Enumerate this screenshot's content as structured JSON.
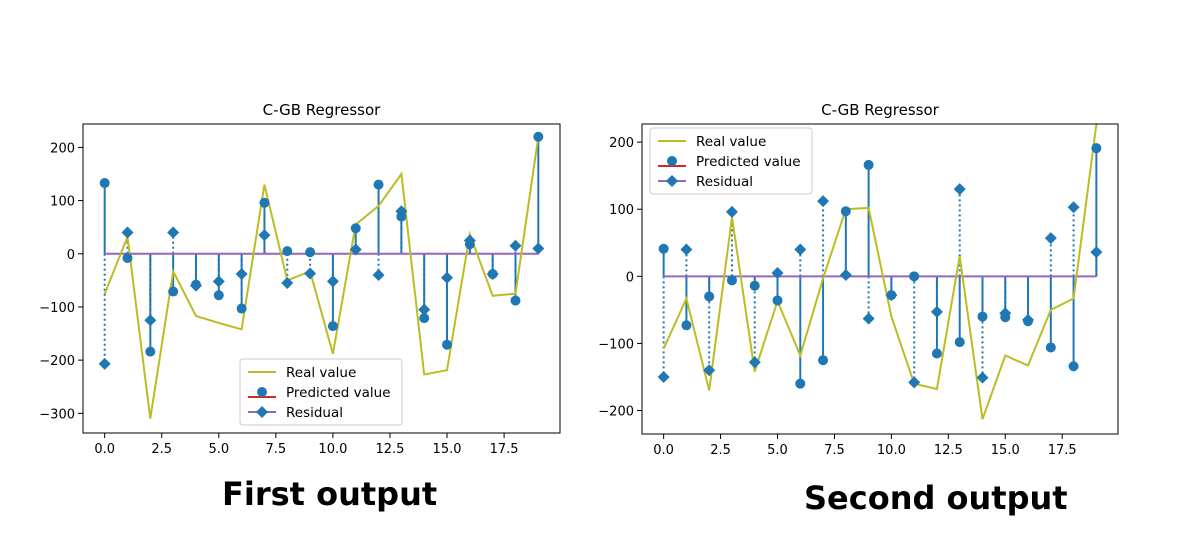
{
  "captions": [
    "First output",
    "Second output"
  ],
  "legend_labels": {
    "real": "Real value",
    "pred": "Predicted value",
    "resid": "Residual"
  },
  "colors": {
    "real": "#bcbd22",
    "pred": "#1f77b4",
    "pred_legend_line": "#d62728",
    "resid": "#9467bd",
    "stem": "#1f77b4"
  },
  "chart_data": [
    {
      "type": "line",
      "title": "C-GB Regressor",
      "xlabel": "",
      "ylabel": "",
      "xlim": [
        -0.95,
        19.95
      ],
      "ylim": [
        -337,
        244
      ],
      "xticks": [
        0,
        2.5,
        5,
        7.5,
        10,
        12.5,
        15,
        17.5
      ],
      "xtick_labels": [
        "0.0",
        "2.5",
        "5.0",
        "7.5",
        "10.0",
        "12.5",
        "15.0",
        "17.5"
      ],
      "yticks": [
        200,
        100,
        0,
        -100,
        -200,
        -300
      ],
      "ytick_labels": [
        "200",
        "100",
        "0",
        "−100",
        "−200",
        "−300"
      ],
      "legend": "lower-center",
      "grid": false,
      "x": [
        0,
        1,
        2,
        3,
        4,
        5,
        6,
        7,
        8,
        9,
        10,
        11,
        12,
        13,
        14,
        15,
        16,
        17,
        18,
        19
      ],
      "series": [
        {
          "name": "Real value",
          "values": [
            -75,
            32,
            -310,
            -33,
            -117,
            -130,
            -142,
            130,
            -50,
            -33,
            -188,
            55,
            90,
            150,
            -227,
            -219,
            37,
            -79,
            -75,
            220
          ]
        },
        {
          "name": "Predicted value",
          "values": [
            133,
            -8,
            -184,
            -71,
            -58,
            -78,
            -103,
            96,
            5,
            3,
            -136,
            48,
            130,
            70,
            -121,
            -171,
            18,
            -38,
            -88,
            220
          ]
        },
        {
          "name": "Residual",
          "values": [
            -207,
            40,
            -125,
            40,
            -60,
            -52,
            -38,
            35,
            -55,
            -37,
            -52,
            8,
            -40,
            80,
            -105,
            -45,
            25,
            -38,
            15,
            10
          ]
        }
      ]
    },
    {
      "type": "line",
      "title": "C-GB Regressor",
      "xlabel": "",
      "ylabel": "",
      "xlim": [
        -0.95,
        19.95
      ],
      "ylim": [
        -235,
        227
      ],
      "xticks": [
        0,
        2.5,
        5,
        7.5,
        10,
        12.5,
        15,
        17.5
      ],
      "xtick_labels": [
        "0.0",
        "2.5",
        "5.0",
        "7.5",
        "10.0",
        "12.5",
        "15.0",
        "17.5"
      ],
      "yticks": [
        200,
        100,
        0,
        -100,
        -200
      ],
      "ytick_labels": [
        "200",
        "100",
        "0",
        "−100",
        "−200"
      ],
      "legend": "top-left",
      "grid": false,
      "x": [
        0,
        1,
        2,
        3,
        4,
        5,
        6,
        7,
        8,
        9,
        10,
        11,
        12,
        13,
        14,
        15,
        16,
        17,
        18,
        19
      ],
      "series": [
        {
          "name": "Real value",
          "values": [
            -108,
            -33,
            -170,
            88,
            -142,
            -37,
            -118,
            -3,
            100,
            102,
            -60,
            -160,
            -168,
            30,
            -213,
            -118,
            -133,
            -50,
            -33,
            227
          ]
        },
        {
          "name": "Predicted value",
          "values": [
            41,
            -73,
            -30,
            -6,
            -14,
            -36,
            -160,
            -125,
            97,
            166,
            -28,
            0,
            -115,
            -98,
            -60,
            -61,
            -67,
            -106,
            -134,
            191
          ]
        },
        {
          "name": "Residual",
          "values": [
            -150,
            40,
            -140,
            96,
            -128,
            5,
            40,
            112,
            2,
            -63,
            -28,
            -158,
            -53,
            130,
            -151,
            -55,
            -65,
            57,
            103,
            36
          ]
        }
      ]
    }
  ]
}
